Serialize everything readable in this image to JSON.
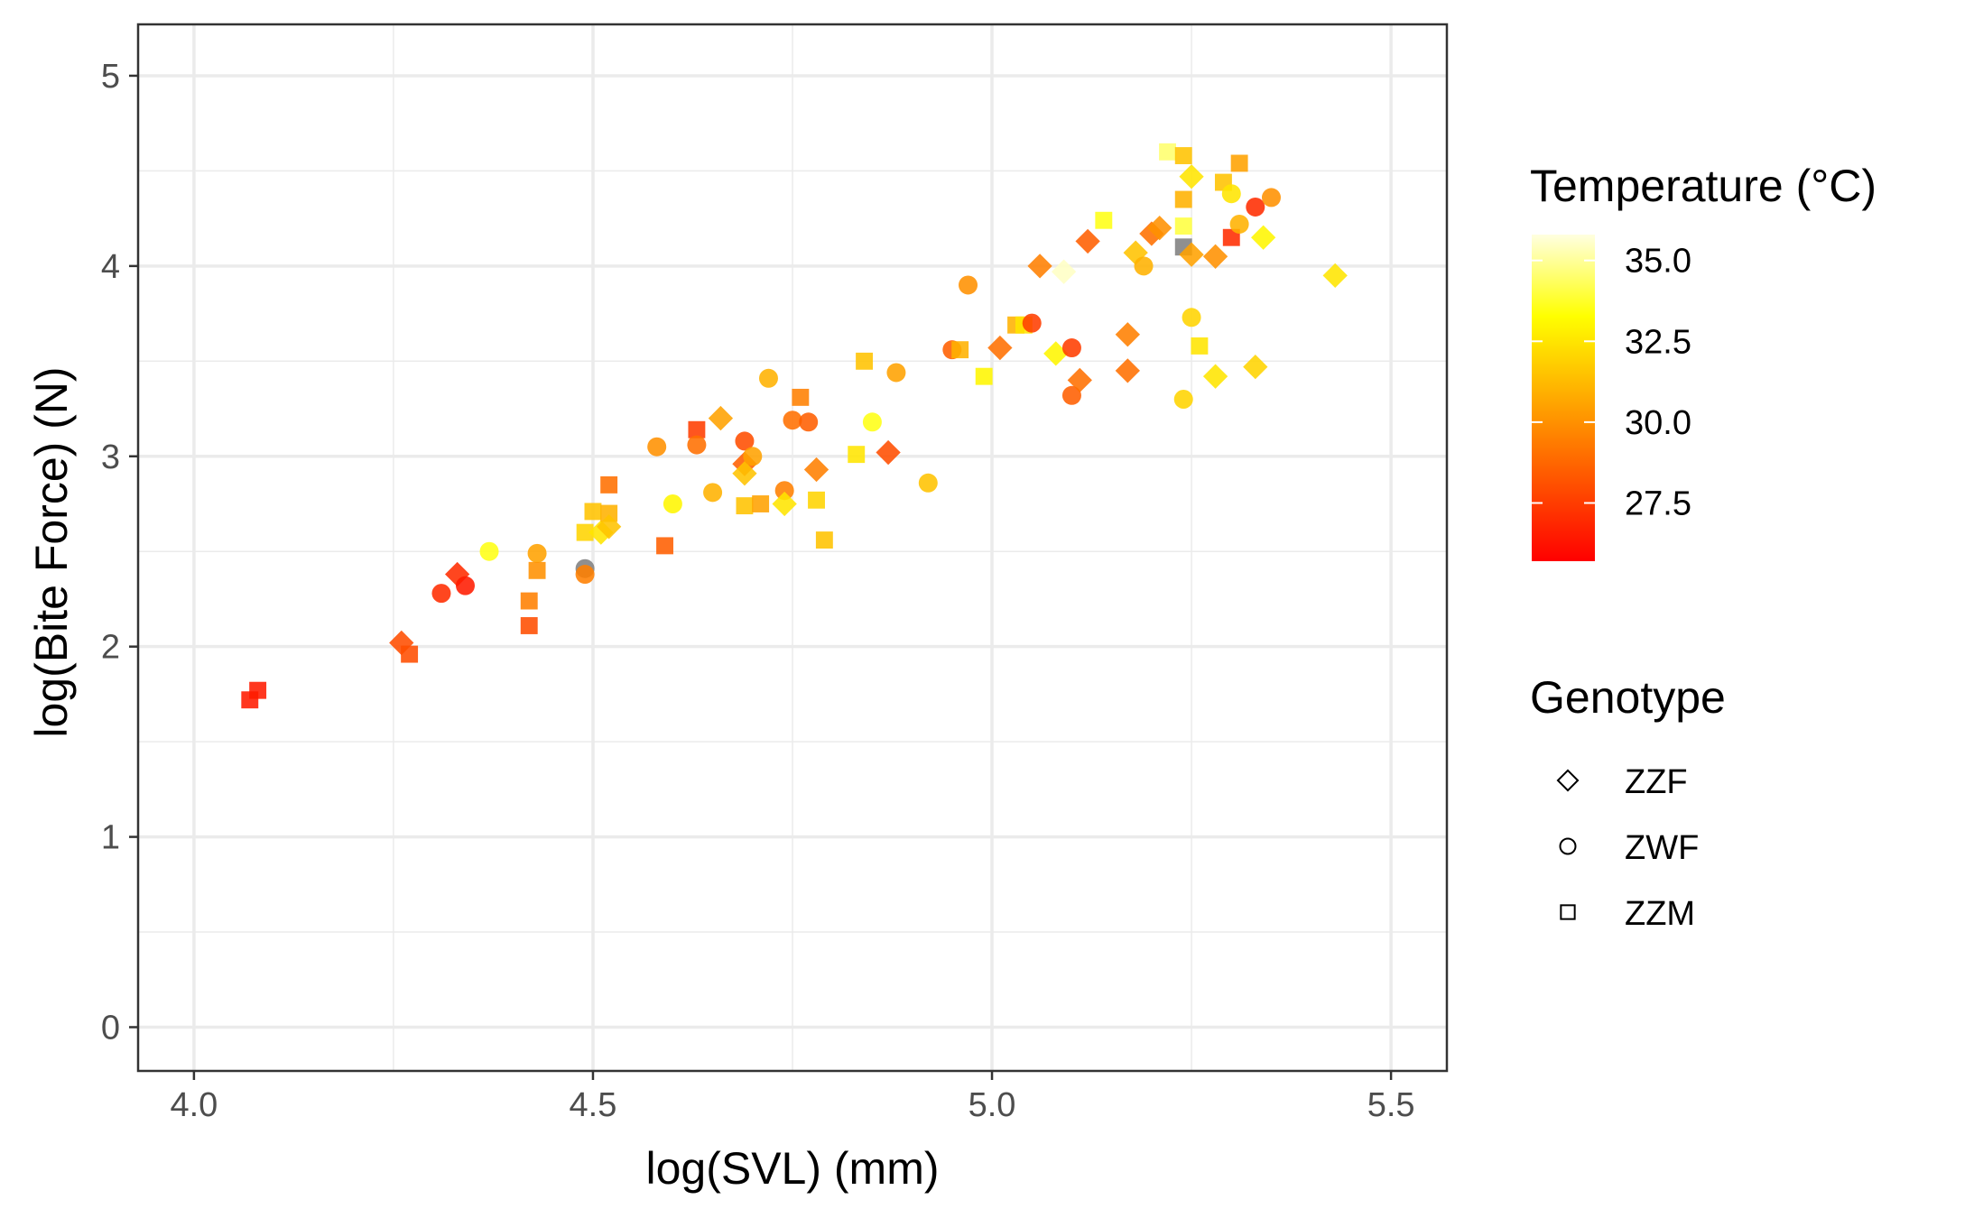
{
  "chart_data": {
    "type": "scatter",
    "xlabel": "log(SVL) (mm)",
    "ylabel": "log(Bite Force) (N)",
    "xlim": [
      3.93,
      5.57
    ],
    "ylim": [
      -0.23,
      5.27
    ],
    "x_ticks": [
      4.0,
      4.5,
      5.0,
      5.5
    ],
    "x_tick_labels": [
      "4.0",
      "4.5",
      "5.0",
      "5.5"
    ],
    "y_ticks": [
      0,
      1,
      2,
      3,
      4,
      5
    ],
    "y_tick_labels": [
      "0",
      "1",
      "2",
      "3",
      "4",
      "5"
    ],
    "grid": true,
    "legend_placement": "right",
    "color_legend": {
      "title": "Temperature (°C)",
      "range": [
        25.7,
        35.8
      ],
      "breaks": [
        27.5,
        30.0,
        32.5,
        35.0
      ],
      "break_labels": [
        "27.5",
        "30.0",
        "32.5",
        "35.0"
      ],
      "gradient_low": "#ff0000",
      "gradient_mid": "#ffff00",
      "gradient_high": "#ffffe0",
      "na_color": "#808080"
    },
    "shape_legend": {
      "title": "Genotype",
      "entries": [
        {
          "label": "ZZF",
          "shape": "diamond"
        },
        {
          "label": "ZWF",
          "shape": "circle"
        },
        {
          "label": "ZZM",
          "shape": "square"
        }
      ]
    },
    "points": [
      {
        "x": 4.07,
        "y": 1.72,
        "g": "ZZM",
        "t": 26.5
      },
      {
        "x": 4.08,
        "y": 1.77,
        "g": "ZZM",
        "t": 26.5
      },
      {
        "x": 4.26,
        "y": 2.02,
        "g": "ZZF",
        "t": 28.0
      },
      {
        "x": 4.27,
        "y": 1.96,
        "g": "ZZM",
        "t": 28.0
      },
      {
        "x": 4.31,
        "y": 2.28,
        "g": "ZWF",
        "t": 27.0
      },
      {
        "x": 4.33,
        "y": 2.38,
        "g": "ZZF",
        "t": 27.0
      },
      {
        "x": 4.34,
        "y": 2.32,
        "g": "ZWF",
        "t": 26.5
      },
      {
        "x": 4.37,
        "y": 2.5,
        "g": "ZWF",
        "t": 33.5
      },
      {
        "x": 4.42,
        "y": 2.24,
        "g": "ZZM",
        "t": 29.5
      },
      {
        "x": 4.42,
        "y": 2.11,
        "g": "ZZM",
        "t": 28.0
      },
      {
        "x": 4.43,
        "y": 2.49,
        "g": "ZWF",
        "t": 30.5
      },
      {
        "x": 4.43,
        "y": 2.4,
        "g": "ZZM",
        "t": 30.0
      },
      {
        "x": 4.49,
        "y": 2.41,
        "g": "ZWF",
        "t": null
      },
      {
        "x": 4.49,
        "y": 2.38,
        "g": "ZWF",
        "t": 29.5
      },
      {
        "x": 4.49,
        "y": 2.6,
        "g": "ZZM",
        "t": 32.0
      },
      {
        "x": 4.5,
        "y": 2.71,
        "g": "ZZM",
        "t": 31.5
      },
      {
        "x": 4.51,
        "y": 2.6,
        "g": "ZZF",
        "t": 32.5
      },
      {
        "x": 4.52,
        "y": 2.85,
        "g": "ZZM",
        "t": 29.0
      },
      {
        "x": 4.52,
        "y": 2.7,
        "g": "ZZM",
        "t": 31.0
      },
      {
        "x": 4.52,
        "y": 2.63,
        "g": "ZZF",
        "t": 31.5
      },
      {
        "x": 4.58,
        "y": 3.05,
        "g": "ZWF",
        "t": 30.0
      },
      {
        "x": 4.59,
        "y": 2.53,
        "g": "ZZM",
        "t": 28.5
      },
      {
        "x": 4.6,
        "y": 2.75,
        "g": "ZWF",
        "t": 33.0
      },
      {
        "x": 4.63,
        "y": 3.14,
        "g": "ZZM",
        "t": 27.5
      },
      {
        "x": 4.63,
        "y": 3.06,
        "g": "ZWF",
        "t": 29.0
      },
      {
        "x": 4.65,
        "y": 2.81,
        "g": "ZWF",
        "t": 31.0
      },
      {
        "x": 4.66,
        "y": 3.2,
        "g": "ZZF",
        "t": 30.5
      },
      {
        "x": 4.69,
        "y": 3.08,
        "g": "ZWF",
        "t": 28.0
      },
      {
        "x": 4.69,
        "y": 2.96,
        "g": "ZZF",
        "t": 28.5
      },
      {
        "x": 4.69,
        "y": 2.91,
        "g": "ZZF",
        "t": 31.5
      },
      {
        "x": 4.7,
        "y": 3.0,
        "g": "ZWF",
        "t": 30.5
      },
      {
        "x": 4.69,
        "y": 2.74,
        "g": "ZZM",
        "t": 31.5
      },
      {
        "x": 4.71,
        "y": 2.75,
        "g": "ZZM",
        "t": 30.5
      },
      {
        "x": 4.72,
        "y": 3.41,
        "g": "ZWF",
        "t": 31.0
      },
      {
        "x": 4.74,
        "y": 2.82,
        "g": "ZWF",
        "t": 29.5
      },
      {
        "x": 4.74,
        "y": 2.75,
        "g": "ZZF",
        "t": 32.5
      },
      {
        "x": 4.75,
        "y": 3.19,
        "g": "ZWF",
        "t": 29.0
      },
      {
        "x": 4.76,
        "y": 3.31,
        "g": "ZZM",
        "t": 29.5
      },
      {
        "x": 4.77,
        "y": 3.18,
        "g": "ZWF",
        "t": 28.5
      },
      {
        "x": 4.78,
        "y": 2.93,
        "g": "ZZF",
        "t": 29.5
      },
      {
        "x": 4.78,
        "y": 2.77,
        "g": "ZZM",
        "t": 32.0
      },
      {
        "x": 4.79,
        "y": 2.56,
        "g": "ZZM",
        "t": 31.5
      },
      {
        "x": 4.83,
        "y": 3.01,
        "g": "ZZM",
        "t": 32.5
      },
      {
        "x": 4.84,
        "y": 3.5,
        "g": "ZZM",
        "t": 31.5
      },
      {
        "x": 4.85,
        "y": 3.18,
        "g": "ZWF",
        "t": 33.5
      },
      {
        "x": 4.87,
        "y": 3.02,
        "g": "ZZF",
        "t": 28.0
      },
      {
        "x": 4.88,
        "y": 3.44,
        "g": "ZWF",
        "t": 30.5
      },
      {
        "x": 4.92,
        "y": 2.86,
        "g": "ZWF",
        "t": 31.5
      },
      {
        "x": 4.95,
        "y": 3.56,
        "g": "ZWF",
        "t": 28.5
      },
      {
        "x": 4.96,
        "y": 3.56,
        "g": "ZZM",
        "t": 31.0
      },
      {
        "x": 4.97,
        "y": 3.9,
        "g": "ZWF",
        "t": 30.0
      },
      {
        "x": 4.99,
        "y": 3.42,
        "g": "ZZM",
        "t": 33.0
      },
      {
        "x": 5.01,
        "y": 3.57,
        "g": "ZZF",
        "t": 29.0
      },
      {
        "x": 5.03,
        "y": 3.69,
        "g": "ZZM",
        "t": 31.0
      },
      {
        "x": 5.04,
        "y": 3.69,
        "g": "ZZM",
        "t": 32.5
      },
      {
        "x": 5.05,
        "y": 3.7,
        "g": "ZWF",
        "t": 27.5
      },
      {
        "x": 5.06,
        "y": 4.0,
        "g": "ZZF",
        "t": 29.5
      },
      {
        "x": 5.08,
        "y": 3.54,
        "g": "ZZF",
        "t": 33.0
      },
      {
        "x": 5.09,
        "y": 3.97,
        "g": "ZZF",
        "t": 35.5
      },
      {
        "x": 5.1,
        "y": 3.57,
        "g": "ZWF",
        "t": 27.5
      },
      {
        "x": 5.1,
        "y": 3.32,
        "g": "ZWF",
        "t": 28.5
      },
      {
        "x": 5.11,
        "y": 3.4,
        "g": "ZZF",
        "t": 29.0
      },
      {
        "x": 5.12,
        "y": 4.13,
        "g": "ZZF",
        "t": 28.5
      },
      {
        "x": 5.14,
        "y": 4.24,
        "g": "ZZM",
        "t": 33.5
      },
      {
        "x": 5.17,
        "y": 3.45,
        "g": "ZZF",
        "t": 29.0
      },
      {
        "x": 5.17,
        "y": 3.64,
        "g": "ZZF",
        "t": 29.5
      },
      {
        "x": 5.18,
        "y": 4.07,
        "g": "ZZF",
        "t": 31.5
      },
      {
        "x": 5.19,
        "y": 4.0,
        "g": "ZWF",
        "t": 31.0
      },
      {
        "x": 5.2,
        "y": 4.17,
        "g": "ZZF",
        "t": 29.0
      },
      {
        "x": 5.21,
        "y": 4.2,
        "g": "ZZF",
        "t": 30.0
      },
      {
        "x": 5.22,
        "y": 4.6,
        "g": "ZZM",
        "t": 34.5
      },
      {
        "x": 5.24,
        "y": 4.58,
        "g": "ZZM",
        "t": 31.5
      },
      {
        "x": 5.24,
        "y": 4.21,
        "g": "ZZM",
        "t": 34.0
      },
      {
        "x": 5.24,
        "y": 4.35,
        "g": "ZZM",
        "t": 31.0
      },
      {
        "x": 5.24,
        "y": 4.1,
        "g": "ZZM",
        "t": null
      },
      {
        "x": 5.24,
        "y": 3.3,
        "g": "ZWF",
        "t": 32.0
      },
      {
        "x": 5.25,
        "y": 4.47,
        "g": "ZZF",
        "t": 32.5
      },
      {
        "x": 5.25,
        "y": 4.06,
        "g": "ZZF",
        "t": 30.5
      },
      {
        "x": 5.25,
        "y": 3.73,
        "g": "ZWF",
        "t": 32.0
      },
      {
        "x": 5.26,
        "y": 3.58,
        "g": "ZZM",
        "t": 32.5
      },
      {
        "x": 5.28,
        "y": 4.05,
        "g": "ZZF",
        "t": 30.0
      },
      {
        "x": 5.28,
        "y": 3.42,
        "g": "ZZF",
        "t": 32.5
      },
      {
        "x": 5.29,
        "y": 4.44,
        "g": "ZZM",
        "t": 31.5
      },
      {
        "x": 5.3,
        "y": 4.38,
        "g": "ZWF",
        "t": 32.5
      },
      {
        "x": 5.3,
        "y": 4.15,
        "g": "ZZM",
        "t": 27.0
      },
      {
        "x": 5.31,
        "y": 4.54,
        "g": "ZZM",
        "t": 30.5
      },
      {
        "x": 5.31,
        "y": 4.22,
        "g": "ZWF",
        "t": 31.0
      },
      {
        "x": 5.33,
        "y": 4.31,
        "g": "ZWF",
        "t": 27.0
      },
      {
        "x": 5.33,
        "y": 3.47,
        "g": "ZZF",
        "t": 32.0
      },
      {
        "x": 5.34,
        "y": 4.15,
        "g": "ZZF",
        "t": 33.0
      },
      {
        "x": 5.35,
        "y": 4.36,
        "g": "ZWF",
        "t": 30.0
      },
      {
        "x": 5.43,
        "y": 3.95,
        "g": "ZZF",
        "t": 32.5
      }
    ]
  }
}
